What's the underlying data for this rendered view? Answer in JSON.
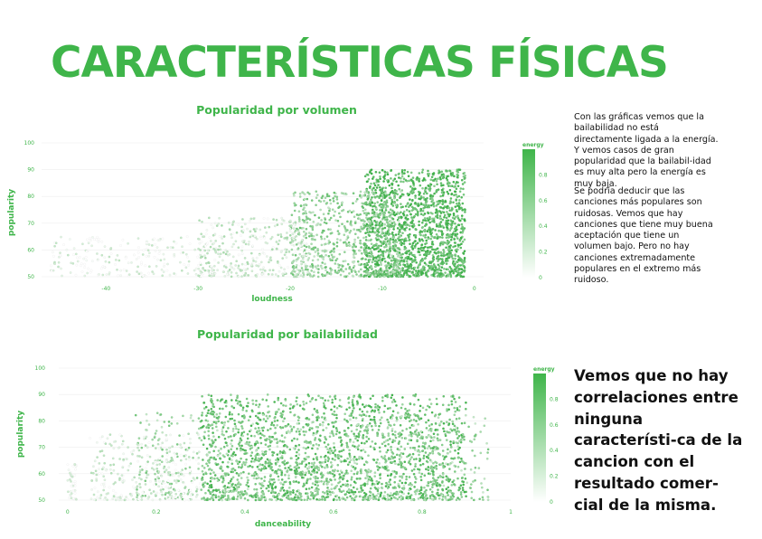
{
  "page": {
    "title": "CARACTERÍSTICAS FÍSICAS",
    "note_1": "Con las gráficas vemos que la bailabilidad no está directamente ligada a la energía. Y vemos casos de gran popularidad que la bailabil-idad es muy alta pero la energía es muy baja.",
    "note_2": "Se podría deducir que las canciones más populares son ruidosas. Vemos que hay canciones que tiene muy buena aceptación que tiene un volumen bajo. Pero no hay canciones extremadamente populares en el extremo más ruidoso.",
    "conclusion": "Vemos que no hay correlaciones entre ninguna característi-ca de la cancion con el resultado comer-cial de la misma."
  },
  "colors": {
    "accent": "#3fb54a",
    "text": "#111111",
    "grid": "#eeeeee"
  },
  "chart_data": [
    {
      "type": "scatter",
      "title": "Popularidad por volumen",
      "xlabel": "loudness",
      "ylabel": "popularity",
      "xlim": [
        -47,
        1
      ],
      "ylim": [
        50,
        100
      ],
      "xticks": [
        -40,
        -30,
        -20,
        -10,
        0
      ],
      "yticks": [
        50,
        60,
        70,
        80,
        90,
        100
      ],
      "grid": true,
      "legend": {
        "title": "energy",
        "placement": "right",
        "range": [
          0,
          1
        ],
        "ticks": [
          0,
          0.2,
          0.4,
          0.6,
          0.8
        ]
      },
      "series": [
        {
          "clusters": [
            {
              "x_range": [
                -12,
                -1
              ],
              "y_range": [
                50,
                90
              ],
              "energy": 0.85,
              "count": 1600
            },
            {
              "x_range": [
                -20,
                -8
              ],
              "y_range": [
                50,
                82
              ],
              "energy": 0.55,
              "count": 700
            },
            {
              "x_range": [
                -30,
                -18
              ],
              "y_range": [
                50,
                72
              ],
              "energy": 0.22,
              "count": 350
            },
            {
              "x_range": [
                -46,
                -28
              ],
              "y_range": [
                50,
                65
              ],
              "energy": 0.08,
              "count": 220
            }
          ]
        }
      ]
    },
    {
      "type": "scatter",
      "title": "Popularidad por bailabilidad",
      "xlabel": "danceability",
      "ylabel": "popularity",
      "xlim": [
        -0.02,
        1.0
      ],
      "ylim": [
        50,
        100
      ],
      "xticks": [
        0,
        0.2,
        0.4,
        0.6,
        0.8,
        1
      ],
      "yticks": [
        50,
        60,
        70,
        80,
        90,
        100
      ],
      "grid": true,
      "legend": {
        "title": "energy",
        "placement": "right",
        "range": [
          0,
          1
        ],
        "ticks": [
          0,
          0.2,
          0.4,
          0.6,
          0.8
        ]
      },
      "series": [
        {
          "clusters": [
            {
              "x_range": [
                0.3,
                0.9
              ],
              "y_range": [
                50,
                90
              ],
              "energy": 0.75,
              "count": 1800
            },
            {
              "x_range": [
                0.15,
                0.95
              ],
              "y_range": [
                50,
                83
              ],
              "energy": 0.5,
              "count": 700
            },
            {
              "x_range": [
                0.05,
                0.3
              ],
              "y_range": [
                50,
                75
              ],
              "energy": 0.15,
              "count": 300
            },
            {
              "x_range": [
                0.0,
                0.02
              ],
              "y_range": [
                50,
                64
              ],
              "energy": 0.05,
              "count": 40
            }
          ]
        }
      ]
    }
  ]
}
